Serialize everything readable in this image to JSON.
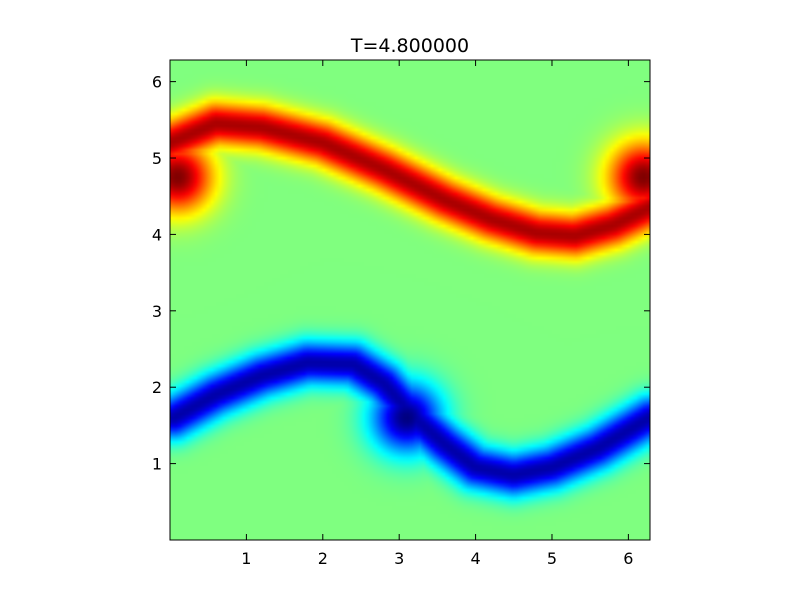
{
  "chart_data": {
    "type": "heatmap",
    "title": "T=4.800000",
    "xlabel": "",
    "ylabel": "",
    "xlim": [
      0,
      6.283
    ],
    "ylim": [
      0,
      6.283
    ],
    "xticks": [
      1,
      2,
      3,
      4,
      5,
      6
    ],
    "yticks": [
      1,
      2,
      3,
      4,
      5,
      6
    ],
    "xtick_labels": [
      "1",
      "2",
      "3",
      "4",
      "5",
      "6"
    ],
    "ytick_labels": [
      "1",
      "2",
      "3",
      "4",
      "5",
      "6"
    ],
    "colormap": "jet",
    "value_range": [
      -1,
      1
    ],
    "background_value": 0,
    "grid": false,
    "features": [
      {
        "name": "positive filament",
        "sign": 1,
        "centerline": [
          [
            0.0,
            5.2
          ],
          [
            0.6,
            5.45
          ],
          [
            1.2,
            5.4
          ],
          [
            2.0,
            5.2
          ],
          [
            2.8,
            4.85
          ],
          [
            3.2,
            4.65
          ],
          [
            3.6,
            4.45
          ],
          [
            4.2,
            4.2
          ],
          [
            4.8,
            4.02
          ],
          [
            5.3,
            3.98
          ],
          [
            5.8,
            4.12
          ],
          [
            6.283,
            4.35
          ]
        ],
        "peak_value": 1
      },
      {
        "name": "positive core",
        "sign": 1,
        "center": [
          0.1,
          4.75
        ],
        "peak_value": 1
      },
      {
        "name": "positive core (periodic)",
        "sign": 1,
        "center": [
          6.2,
          4.75
        ],
        "peak_value": 1
      },
      {
        "name": "negative filament",
        "sign": -1,
        "centerline": [
          [
            0.05,
            1.6
          ],
          [
            0.6,
            1.9
          ],
          [
            1.2,
            2.15
          ],
          [
            1.8,
            2.32
          ],
          [
            2.4,
            2.3
          ],
          [
            2.8,
            2.05
          ],
          [
            3.2,
            1.6
          ],
          [
            3.6,
            1.25
          ],
          [
            4.0,
            0.95
          ],
          [
            4.5,
            0.85
          ],
          [
            5.0,
            0.95
          ],
          [
            5.6,
            1.2
          ],
          [
            6.283,
            1.6
          ]
        ],
        "peak_value": -1
      },
      {
        "name": "negative core",
        "sign": -1,
        "center": [
          3.1,
          1.6
        ],
        "peak_value": -1
      }
    ]
  }
}
